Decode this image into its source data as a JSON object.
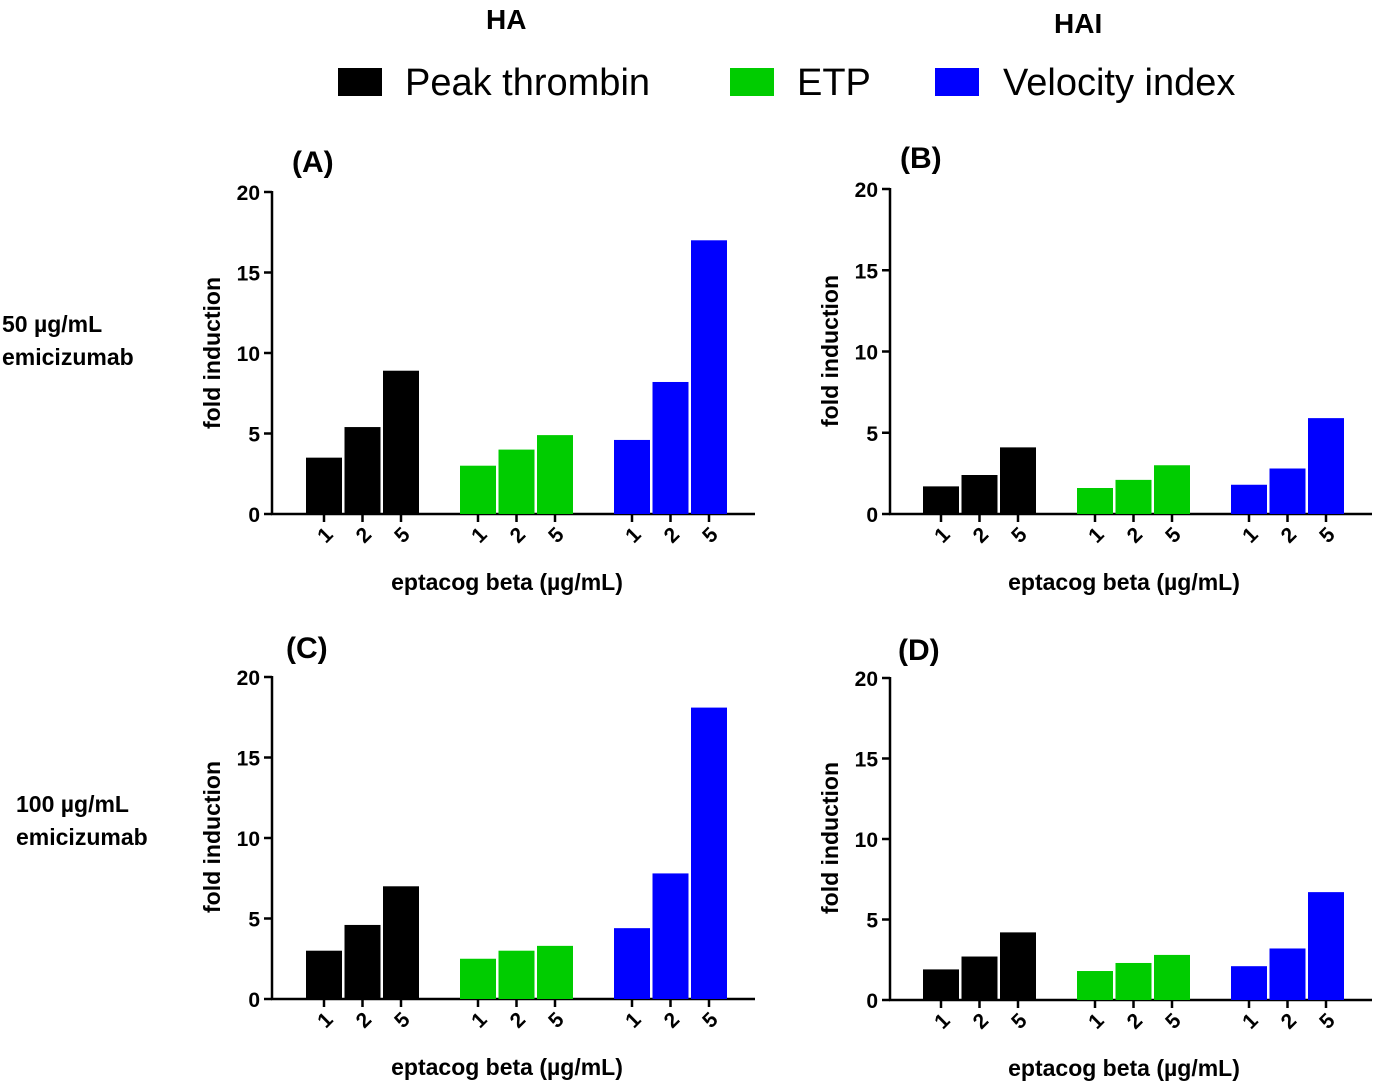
{
  "columns": [
    "HA",
    "HAI"
  ],
  "rows": [
    "50 µg/mL emicizumab",
    "100 µg/mL emicizumab"
  ],
  "row_label_lines": [
    [
      "50 µg/mL",
      "emicizumab"
    ],
    [
      "100 µg/mL",
      "emicizumab"
    ]
  ],
  "legend": [
    {
      "label": "Peak thrombin",
      "color": "#000000"
    },
    {
      "label": "ETP",
      "color": "#00cc00"
    },
    {
      "label": "Velocity index",
      "color": "#0000ff"
    }
  ],
  "chart_data": [
    {
      "type": "bar",
      "panel": "(A)",
      "xlabel": "eptacog beta (µg/mL)",
      "ylabel": "fold induction",
      "ylim": [
        0,
        20
      ],
      "yticks": [
        0,
        5,
        10,
        15,
        20
      ],
      "categories": [
        "1",
        "2",
        "5"
      ],
      "series": [
        {
          "name": "Peak thrombin",
          "color": "#000000",
          "values": [
            3.5,
            5.4,
            8.9
          ]
        },
        {
          "name": "ETP",
          "color": "#00cc00",
          "values": [
            3.0,
            4.0,
            4.9
          ]
        },
        {
          "name": "Velocity index",
          "color": "#0000ff",
          "values": [
            4.6,
            8.2,
            17.0
          ]
        }
      ]
    },
    {
      "type": "bar",
      "panel": "(B)",
      "xlabel": "eptacog beta (µg/mL)",
      "ylabel": "fold induction",
      "ylim": [
        0,
        20
      ],
      "yticks": [
        0,
        5,
        10,
        15,
        20
      ],
      "categories": [
        "1",
        "2",
        "5"
      ],
      "series": [
        {
          "name": "Peak thrombin",
          "color": "#000000",
          "values": [
            1.7,
            2.4,
            4.1
          ]
        },
        {
          "name": "ETP",
          "color": "#00cc00",
          "values": [
            1.6,
            2.1,
            3.0
          ]
        },
        {
          "name": "Velocity index",
          "color": "#0000ff",
          "values": [
            1.8,
            2.8,
            5.9
          ]
        }
      ]
    },
    {
      "type": "bar",
      "panel": "(C)",
      "xlabel": "eptacog beta (µg/mL)",
      "ylabel": "fold induction",
      "ylim": [
        0,
        20
      ],
      "yticks": [
        0,
        5,
        10,
        15,
        20
      ],
      "categories": [
        "1",
        "2",
        "5"
      ],
      "series": [
        {
          "name": "Peak thrombin",
          "color": "#000000",
          "values": [
            3.0,
            4.6,
            7.0
          ]
        },
        {
          "name": "ETP",
          "color": "#00cc00",
          "values": [
            2.5,
            3.0,
            3.3
          ]
        },
        {
          "name": "Velocity index",
          "color": "#0000ff",
          "values": [
            4.4,
            7.8,
            18.1
          ]
        }
      ]
    },
    {
      "type": "bar",
      "panel": "(D)",
      "xlabel": "eptacog beta (µg/mL)",
      "ylabel": "fold induction",
      "ylim": [
        0,
        20
      ],
      "yticks": [
        0,
        5,
        10,
        15,
        20
      ],
      "categories": [
        "1",
        "2",
        "5"
      ],
      "series": [
        {
          "name": "Peak thrombin",
          "color": "#000000",
          "values": [
            1.9,
            2.7,
            4.2
          ]
        },
        {
          "name": "ETP",
          "color": "#00cc00",
          "values": [
            1.8,
            2.3,
            2.8
          ]
        },
        {
          "name": "Velocity index",
          "color": "#0000ff",
          "values": [
            2.1,
            3.2,
            6.7
          ]
        }
      ]
    }
  ]
}
